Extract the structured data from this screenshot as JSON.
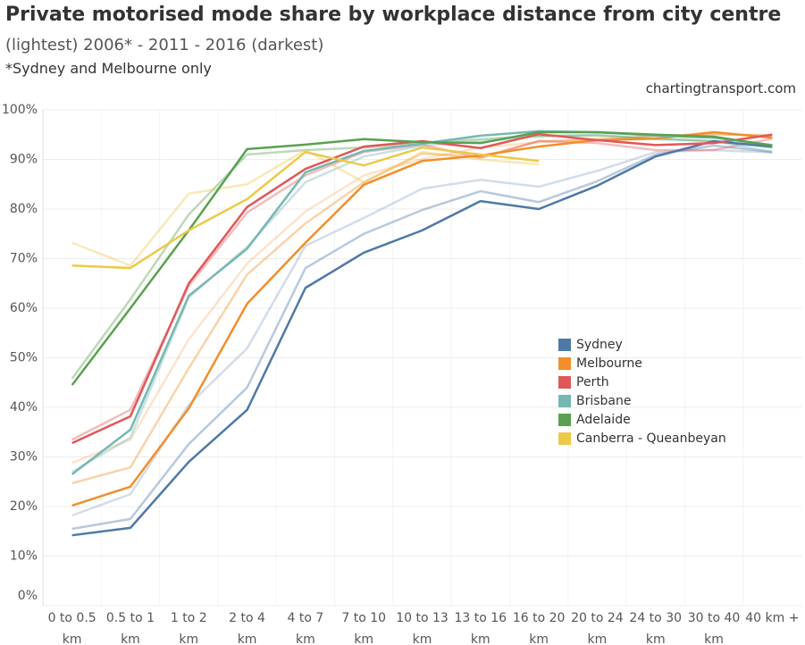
{
  "chart_data": {
    "type": "line",
    "title": "Private motorised mode share by workplace distance from city centre",
    "subtitle": "(lightest) 2006* - 2011 - 2016 (darkest)",
    "note": "*Sydney and Melbourne only",
    "source": "chartingtransport.com",
    "categories": [
      "0 to 0.5 km",
      "0.5 to 1 km",
      "1 to 2 km",
      "2 to 4 km",
      "4 to 7 km",
      "7 to 10 km",
      "10 to 13 km",
      "13 to 16 km",
      "16 to 20 km",
      "20 to 24 km",
      "24 to 30 km",
      "30 to 40 km",
      "40 km +"
    ],
    "ylim": [
      0,
      100
    ],
    "yticks": [
      {
        "value": 0,
        "label": "0%"
      },
      {
        "value": 10,
        "label": "10%"
      },
      {
        "value": 20,
        "label": "20%"
      },
      {
        "value": 30,
        "label": "30%"
      },
      {
        "value": 40,
        "label": "40%"
      },
      {
        "value": 50,
        "label": "50%"
      },
      {
        "value": 60,
        "label": "60%"
      },
      {
        "value": 70,
        "label": "70%"
      },
      {
        "value": 80,
        "label": "80%"
      },
      {
        "value": 90,
        "label": "90%"
      },
      {
        "value": 100,
        "label": "100%"
      }
    ],
    "grid": true,
    "series": [
      {
        "name": "Sydney",
        "color": "#4e79a7",
        "lines": [
          {
            "opacity": 0.25,
            "values": [
              18.2,
              22.5,
              40.5,
              51.9,
              72.6,
              78.2,
              84.1,
              85.9,
              84.5,
              87.7,
              91.5,
              91.9,
              91.4
            ]
          },
          {
            "opacity": 0.4,
            "values": [
              15.5,
              17.5,
              32.6,
              44.0,
              68.1,
              75.0,
              79.8,
              83.6,
              81.4,
              85.6,
              91.0,
              92.8,
              91.5
            ]
          },
          {
            "opacity": 1,
            "values": [
              14.2,
              15.7,
              29.0,
              39.5,
              64.1,
              71.2,
              75.7,
              81.6,
              80.0,
              84.7,
              90.6,
              93.7,
              92.6
            ]
          }
        ]
      },
      {
        "name": "Melbourne",
        "color": "#f28e2b",
        "lines": [
          {
            "opacity": 0.25,
            "values": [
              28.8,
              33.5,
              53.7,
              69.0,
              79.5,
              86.8,
              90.1,
              92.4,
              93.5,
              94.2,
              94.6,
              95.1,
              94.9
            ]
          },
          {
            "opacity": 0.4,
            "values": [
              24.7,
              27.9,
              47.9,
              66.8,
              77.1,
              85.4,
              91.2,
              90.5,
              93.7,
              93.9,
              94.8,
              95.1,
              94.8
            ]
          },
          {
            "opacity": 1,
            "values": [
              20.2,
              24.0,
              39.8,
              60.9,
              73.2,
              84.9,
              89.7,
              90.8,
              92.6,
              93.9,
              94.2,
              95.5,
              94.4
            ]
          }
        ]
      },
      {
        "name": "Perth",
        "color": "#e15759",
        "lines": [
          {
            "opacity": 0.4,
            "values": [
              33.5,
              39.5,
              64.5,
              79.3,
              86.8,
              91.5,
              93.0,
              90.3,
              93.7,
              93.3,
              91.9,
              91.9,
              94.2
            ]
          },
          {
            "opacity": 1,
            "values": [
              32.8,
              38.2,
              65.0,
              80.4,
              88.1,
              92.6,
              93.7,
              92.3,
              95.1,
              93.9,
              92.9,
              93.3,
              95.0
            ]
          }
        ]
      },
      {
        "name": "Brisbane",
        "color": "#76b7b2",
        "lines": [
          {
            "opacity": 0.4,
            "values": [
              27.0,
              33.9,
              62.2,
              72.4,
              85.4,
              90.6,
              92.8,
              93.7,
              94.6,
              95.0,
              94.1,
              93.7,
              91.5
            ]
          },
          {
            "opacity": 1,
            "values": [
              26.5,
              35.5,
              62.5,
              72.0,
              87.4,
              91.7,
              93.2,
              94.8,
              95.7,
              95.5,
              94.8,
              94.4,
              92.9
            ]
          }
        ]
      },
      {
        "name": "Adelaide",
        "color": "#59a14f",
        "lines": [
          {
            "opacity": 0.4,
            "values": [
              45.8,
              61.8,
              78.9,
              91.0,
              91.9,
              92.4,
              93.3,
              94.1,
              94.8,
              94.8,
              94.2,
              93.7,
              92.4
            ]
          },
          {
            "opacity": 1,
            "values": [
              44.5,
              60.0,
              75.7,
              92.1,
              93.0,
              94.1,
              93.5,
              93.3,
              95.5,
              95.5,
              95.0,
              94.6,
              92.8
            ]
          }
        ]
      },
      {
        "name": "Canberra - Queanbeyan",
        "color": "#edc948",
        "lines": [
          {
            "opacity": 0.4,
            "values": [
              73.2,
              68.6,
              83.1,
              85.0,
              91.9,
              85.4,
              91.5,
              90.0,
              89.0,
              null,
              null,
              null,
              null
            ]
          },
          {
            "opacity": 1,
            "values": [
              68.6,
              68.1,
              75.7,
              82.0,
              91.5,
              88.8,
              92.4,
              91.0,
              89.7,
              null,
              null,
              null,
              null
            ]
          }
        ]
      }
    ]
  }
}
